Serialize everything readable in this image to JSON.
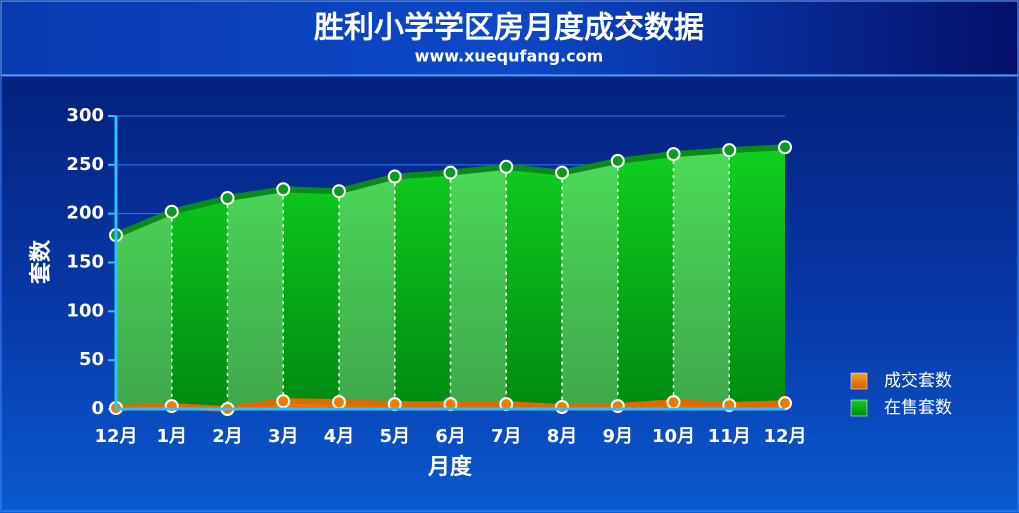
{
  "chart_data": {
    "type": "area",
    "title": "胜利小学学区房月度成交数据",
    "subtitle": "www.xuequfang.com",
    "x_label": "月度",
    "y_label": "套数",
    "categories": [
      "12月",
      "1月",
      "2月",
      "3月",
      "4月",
      "5月",
      "6月",
      "7月",
      "8月",
      "9月",
      "10月",
      "11月",
      "12月"
    ],
    "series": [
      {
        "name": "成交套数",
        "color": "#f08000",
        "values": [
          1,
          3,
          0,
          8,
          7,
          5,
          5,
          5,
          2,
          3,
          7,
          4,
          6
        ]
      },
      {
        "name": "在售套数",
        "color": "#00c000",
        "values": [
          178,
          202,
          216,
          225,
          223,
          238,
          242,
          248,
          242,
          254,
          261,
          265,
          268
        ]
      }
    ],
    "ylim": [
      0,
      300
    ],
    "yticks": [
      0,
      50,
      100,
      150,
      200,
      250,
      300
    ],
    "grid": true,
    "legend": "right"
  }
}
